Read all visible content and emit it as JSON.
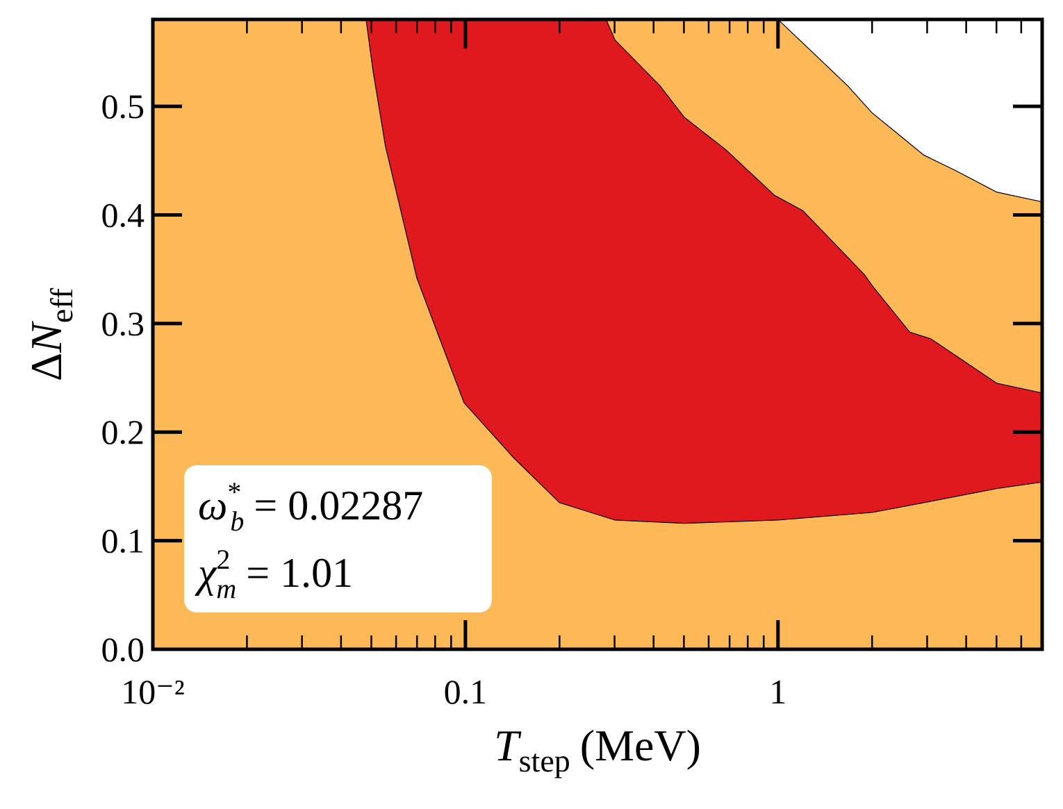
{
  "chart_data": {
    "type": "filled_contour",
    "xlabel": {
      "symbol": "T",
      "sub": "step",
      "rest": "(MeV)"
    },
    "ylabel": {
      "prefix": "Δ",
      "symbol": "N",
      "sub": "eff"
    },
    "annotation": [
      {
        "symbol": "ω",
        "sup": "*",
        "sub": "b",
        "rest": "= 0.02287"
      },
      {
        "symbol": "χ",
        "sup": "2",
        "sub": "m",
        "rest": "= 1.01"
      }
    ],
    "xscale": "log",
    "xlim": [
      0.01,
      7
    ],
    "ylim": [
      0,
      0.58
    ],
    "xticks": [
      {
        "value": 0.01,
        "label": "10⁻²"
      },
      0.1,
      1
    ],
    "xticks_minor": [
      0.02,
      0.03,
      0.04,
      0.05,
      0.06,
      0.07,
      0.08,
      0.09,
      0.2,
      0.3,
      0.4,
      0.5,
      0.6,
      0.7,
      0.8,
      0.9,
      2,
      3,
      4,
      5,
      6
    ],
    "yticks": [
      {
        "value": 0,
        "label": "0.0"
      },
      0.1,
      0.2,
      0.3,
      0.4,
      0.5
    ],
    "series": [
      {
        "color": "#fdb857",
        "x": [
          0.01,
          7,
          7,
          5.01,
          3.69,
          2.93,
          2.0,
          1.67,
          1,
          0.01
        ],
        "values": [
          0,
          0,
          0.412,
          0.421,
          0.441,
          0.455,
          0.494,
          0.519,
          0.58,
          0.58
        ]
      },
      {
        "color": "#e0191e",
        "x": [
          0.0481,
          0.0506,
          0.0555,
          0.0699,
          0.0815,
          0.099,
          0.143,
          0.2,
          0.301,
          0.501,
          1,
          2,
          2.93,
          5.01,
          7,
          7,
          5.01,
          3.08,
          2.64,
          2.0,
          1.89,
          1.2,
          0.975,
          0.681,
          0.501,
          0.419,
          0.301,
          0.282
        ],
        "values": [
          0.58,
          0.533,
          0.463,
          0.342,
          0.291,
          0.227,
          0.176,
          0.135,
          0.119,
          0.116,
          0.119,
          0.126,
          0.135,
          0.148,
          0.154,
          0.236,
          0.245,
          0.286,
          0.292,
          0.335,
          0.345,
          0.404,
          0.418,
          0.46,
          0.49,
          0.519,
          0.561,
          0.58
        ]
      }
    ]
  }
}
